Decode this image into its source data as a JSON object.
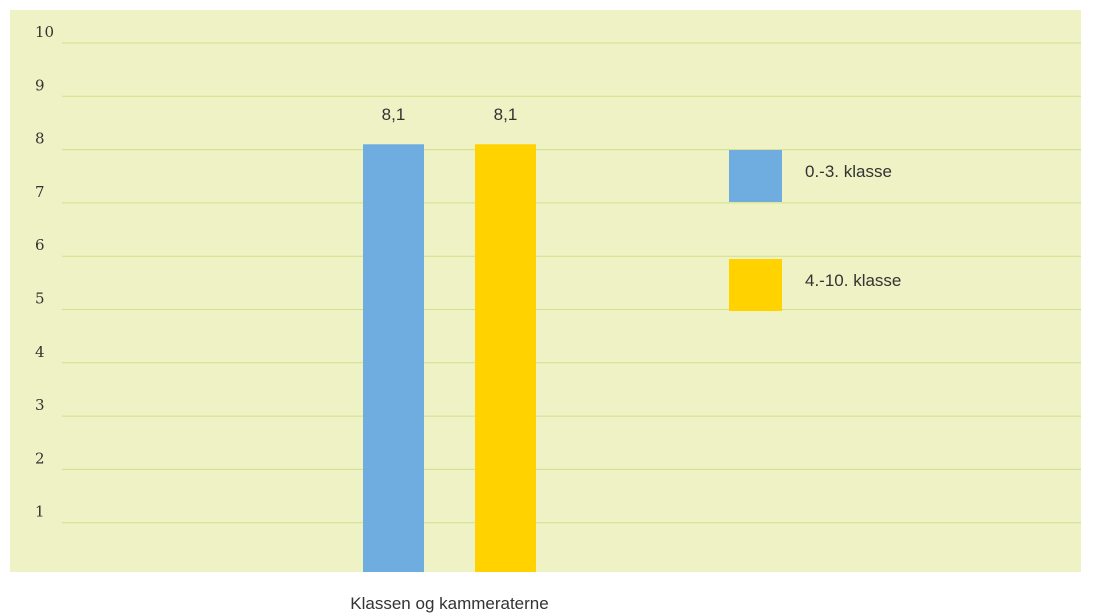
{
  "chart_data": {
    "type": "bar",
    "categories": [
      "Klassen og kammeraterne"
    ],
    "series": [
      {
        "name": "0.-3. klasse",
        "values": [
          8.1
        ],
        "value_label": "8,1",
        "color": "#6fade0"
      },
      {
        "name": "4.-10. klasse",
        "values": [
          8.1
        ],
        "value_label": "8,1",
        "color": "#ffd200"
      }
    ],
    "ylim": [
      0,
      10
    ],
    "yticks": [
      1,
      2,
      3,
      4,
      5,
      6,
      7,
      8,
      9,
      10
    ],
    "grid": true,
    "legend": "right",
    "title": "",
    "xlabel": "",
    "ylabel": "",
    "background_color": "#eef2c4",
    "grid_color": "#d3e08a"
  }
}
